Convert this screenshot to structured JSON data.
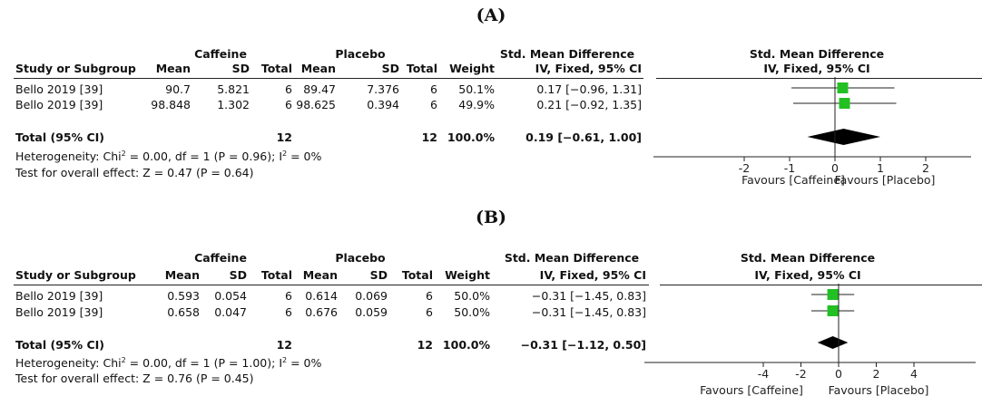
{
  "columns": {
    "group_caffeine": "Caffeine",
    "group_placebo": "Placebo",
    "std_mean_diff": "Std. Mean Difference",
    "study": "Study or Subgroup",
    "mean": "Mean",
    "sd": "SD",
    "total": "Total",
    "weight": "Weight",
    "method": "IV, Fixed, 95% CI"
  },
  "panels": [
    {
      "label": "(A)",
      "rows": [
        {
          "study": "Bello 2019 [39]",
          "c_mean": "90.7",
          "c_sd": "5.821",
          "c_total": "6",
          "p_mean": "89.47",
          "p_sd": "7.376",
          "p_total": "6",
          "weight": "50.1%",
          "ci": "0.17 [−0.96, 1.31]"
        },
        {
          "study": "Bello 2019 [39]",
          "c_mean": "98.848",
          "c_sd": "1.302",
          "c_total": "6",
          "p_mean": "98.625",
          "p_sd": "0.394",
          "p_total": "6",
          "weight": "49.9%",
          "ci": "0.21 [−0.92, 1.35]"
        }
      ],
      "total": {
        "label": "Total (95% CI)",
        "c_total": "12",
        "p_total": "12",
        "weight": "100.0%",
        "ci": "0.19 [−0.61, 1.00]"
      },
      "heterogeneity_prefix": "Heterogeneity: Chi",
      "heterogeneity_mid": " = 0.00, df = 1 (P = 0.96); I",
      "heterogeneity_suffix": " = 0%",
      "overall_effect": "Test for overall effect: Z = 0.47 (P = 0.64)",
      "favours_left": "Favours [Caffeine]",
      "favours_right": "Favours [Placebo]"
    },
    {
      "label": "(B)",
      "rows": [
        {
          "study": "Bello 2019 [39]",
          "c_mean": "0.593",
          "c_sd": "0.054",
          "c_total": "6",
          "p_mean": "0.614",
          "p_sd": "0.069",
          "p_total": "6",
          "weight": "50.0%",
          "ci": "−0.31 [−1.45, 0.83]"
        },
        {
          "study": "Bello 2019 [39]",
          "c_mean": "0.658",
          "c_sd": "0.047",
          "c_total": "6",
          "p_mean": "0.676",
          "p_sd": "0.059",
          "p_total": "6",
          "weight": "50.0%",
          "ci": "−0.31 [−1.45, 0.83]"
        }
      ],
      "total": {
        "label": "Total (95% CI)",
        "c_total": "12",
        "p_total": "12",
        "weight": "100.0%",
        "ci": "−0.31 [−1.12, 0.50]"
      },
      "heterogeneity_prefix": "Heterogeneity: Chi",
      "heterogeneity_mid": " = 0.00, df = 1 (P = 1.00); I",
      "heterogeneity_suffix": " = 0%",
      "overall_effect": "Test for overall effect: Z = 0.76 (P = 0.45)",
      "favours_left": "Favours [Caffeine]",
      "favours_right": "Favours [Placebo]"
    }
  ],
  "chart_data": [
    {
      "type": "forest",
      "title": "Std. Mean Difference",
      "subtitle": "IV, Fixed, 95% CI",
      "xlim": [
        -2,
        2
      ],
      "ticks": [
        -2,
        -1,
        0,
        1,
        2
      ],
      "tick_labels": [
        "-2",
        "-1",
        "0",
        "1",
        "2"
      ],
      "studies": [
        {
          "name": "Bello 2019 [39]",
          "estimate": 0.17,
          "ci_low": -0.96,
          "ci_high": 1.31,
          "weight": 50.1
        },
        {
          "name": "Bello 2019 [39]",
          "estimate": 0.21,
          "ci_low": -0.92,
          "ci_high": 1.35,
          "weight": 49.9
        }
      ],
      "pooled": {
        "estimate": 0.19,
        "ci_low": -0.61,
        "ci_high": 1.0
      },
      "marker_color": "#22c022",
      "xlabel_left": "Favours [Caffeine]",
      "xlabel_right": "Favours [Placebo]"
    },
    {
      "type": "forest",
      "title": "Std. Mean Difference",
      "subtitle": "IV, Fixed, 95% CI",
      "xlim": [
        -4,
        4
      ],
      "ticks": [
        -4,
        -2,
        0,
        2,
        4
      ],
      "tick_labels": [
        "-4",
        "-2",
        "0",
        "2",
        "4"
      ],
      "studies": [
        {
          "name": "Bello 2019 [39]",
          "estimate": -0.31,
          "ci_low": -1.45,
          "ci_high": 0.83,
          "weight": 50.0
        },
        {
          "name": "Bello 2019 [39]",
          "estimate": -0.31,
          "ci_low": -1.45,
          "ci_high": 0.83,
          "weight": 50.0
        }
      ],
      "pooled": {
        "estimate": -0.31,
        "ci_low": -1.12,
        "ci_high": 0.5
      },
      "marker_color": "#22c022",
      "xlabel_left": "Favours [Caffeine]",
      "xlabel_right": "Favours [Placebo]"
    }
  ]
}
